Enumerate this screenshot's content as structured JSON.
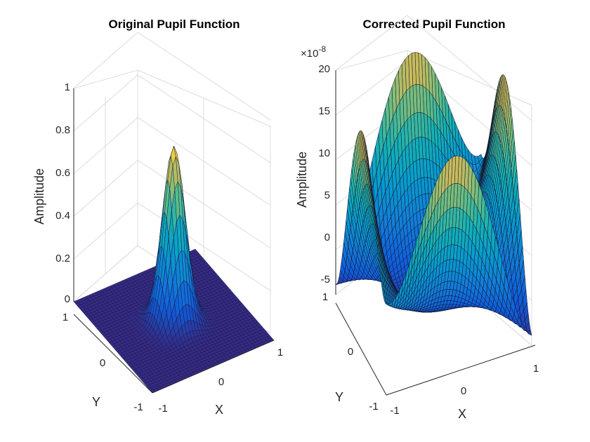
{
  "chart_data": [
    {
      "type": "surface",
      "title": "Original Pupil Function",
      "xlabel": "X",
      "ylabel": "Y",
      "zlabel": "Amplitude",
      "xlim": [
        -1,
        1
      ],
      "ylim": [
        -1,
        1
      ],
      "zlim": [
        0,
        1
      ],
      "x_ticks": [
        "-1",
        "0",
        "1"
      ],
      "y_ticks": [
        "-1",
        "0",
        "1"
      ],
      "z_ticks": [
        "0",
        "0.2",
        "0.4",
        "0.6",
        "0.8",
        "1"
      ],
      "z_exponent_label": "",
      "peak_value": 0.82,
      "colormap": "parula",
      "grid": true
    },
    {
      "type": "surface",
      "title": "Corrected Pupil Function",
      "xlabel": "X",
      "ylabel": "Y",
      "zlabel": "Amplitude",
      "xlim": [
        -1,
        1
      ],
      "ylim": [
        -1,
        1
      ],
      "zlim": [
        -5e-08,
        2e-07
      ],
      "x_ticks": [
        "-1",
        "0",
        "1"
      ],
      "y_ticks": [
        "-1",
        "0",
        "1"
      ],
      "z_ticks": [
        "-5",
        "0",
        "5",
        "10",
        "15",
        "20"
      ],
      "z_exponent_label": "×10",
      "z_exponent_power": "-8",
      "z_min_value": -5e-08,
      "z_max_value": 2e-07,
      "colormap": "parula",
      "grid": true
    }
  ]
}
